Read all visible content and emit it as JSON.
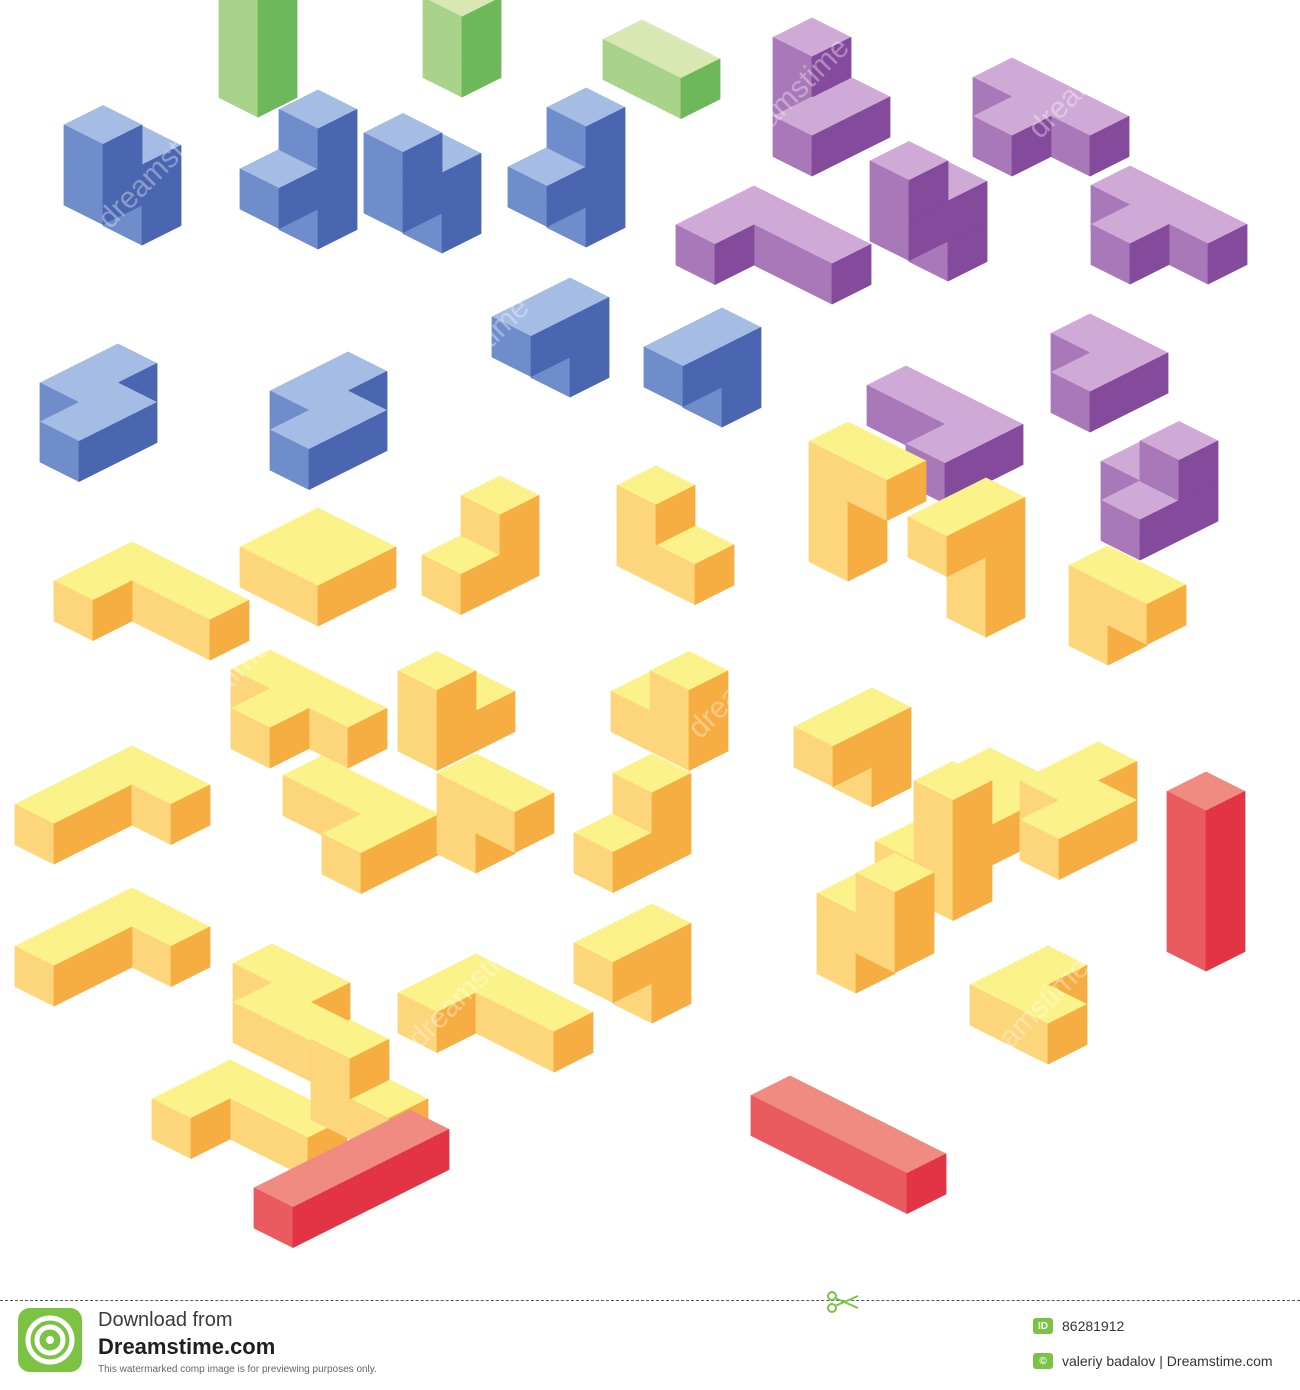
{
  "watermark": {
    "repeated_text": "dreamstime"
  },
  "pieces": {
    "green": [
      {
        "cells": [
          [
            0,
            0,
            0
          ],
          [
            0,
            0,
            1
          ],
          [
            0,
            0,
            2
          ]
        ]
      },
      {
        "cells": [
          [
            0,
            0,
            0
          ],
          [
            0,
            0,
            1
          ]
        ]
      },
      {
        "cells": [
          [
            0,
            0,
            0
          ],
          [
            1,
            0,
            0
          ]
        ]
      }
    ],
    "purple": [
      {
        "cells": [
          [
            0,
            0,
            0
          ],
          [
            1,
            0,
            0
          ],
          [
            1,
            1,
            0
          ],
          [
            0,
            0,
            1
          ]
        ]
      },
      {
        "cells": [
          [
            0,
            0,
            0
          ],
          [
            1,
            0,
            0
          ],
          [
            2,
            0,
            0
          ],
          [
            1,
            1,
            0
          ]
        ]
      },
      {
        "cells": [
          [
            0,
            0,
            0
          ],
          [
            1,
            0,
            0
          ],
          [
            2,
            0,
            0
          ],
          [
            1,
            1,
            0
          ]
        ]
      },
      {
        "cells": [
          [
            0,
            0,
            0
          ],
          [
            1,
            0,
            0
          ],
          [
            2,
            0,
            0
          ],
          [
            0,
            1,
            0
          ]
        ]
      },
      {
        "cells": [
          [
            0,
            0,
            0
          ],
          [
            0,
            0,
            1
          ],
          [
            0,
            1,
            1
          ],
          [
            0,
            1,
            2
          ]
        ]
      },
      {
        "cells": [
          [
            0,
            0,
            0
          ],
          [
            1,
            0,
            0
          ],
          [
            1,
            1,
            0
          ]
        ]
      },
      {
        "cells": [
          [
            0,
            0,
            0
          ],
          [
            1,
            0,
            0
          ],
          [
            2,
            0,
            0
          ],
          [
            2,
            1,
            0
          ]
        ]
      },
      {
        "cells": [
          [
            0,
            0,
            0
          ],
          [
            1,
            0,
            0
          ],
          [
            1,
            1,
            0
          ],
          [
            1,
            0,
            1
          ]
        ]
      }
    ],
    "blue": [
      {
        "cells": [
          [
            0,
            0,
            0
          ],
          [
            0,
            0,
            1
          ],
          [
            0,
            1,
            1
          ],
          [
            0,
            1,
            2
          ]
        ]
      },
      {
        "cells": [
          [
            0,
            0,
            0
          ],
          [
            0,
            0,
            1
          ],
          [
            0,
            0,
            2
          ],
          [
            0,
            1,
            1
          ]
        ]
      },
      {
        "cells": [
          [
            0,
            0,
            0
          ],
          [
            0,
            0,
            1
          ],
          [
            0,
            1,
            1
          ],
          [
            0,
            1,
            2
          ]
        ]
      },
      {
        "cells": [
          [
            0,
            0,
            0
          ],
          [
            0,
            0,
            1
          ],
          [
            0,
            1,
            1
          ],
          [
            0,
            0,
            2
          ]
        ]
      },
      {
        "cells": [
          [
            0,
            0,
            0
          ],
          [
            0,
            1,
            0
          ],
          [
            1,
            1,
            0
          ],
          [
            1,
            2,
            0
          ]
        ]
      },
      {
        "cells": [
          [
            0,
            0,
            0
          ],
          [
            0,
            1,
            0
          ],
          [
            1,
            1,
            0
          ],
          [
            1,
            2,
            0
          ]
        ]
      },
      {
        "cells": [
          [
            0,
            0,
            0
          ],
          [
            0,
            0,
            1
          ],
          [
            0,
            1,
            1
          ]
        ]
      },
      {
        "cells": [
          [
            0,
            0,
            0
          ],
          [
            0,
            0,
            1
          ],
          [
            0,
            1,
            1
          ]
        ]
      }
    ],
    "yellow": [
      {
        "cells": [
          [
            0,
            0,
            0
          ],
          [
            1,
            0,
            0
          ],
          [
            2,
            0,
            0
          ],
          [
            0,
            1,
            0
          ]
        ]
      },
      {
        "cells": [
          [
            0,
            0,
            0
          ],
          [
            1,
            0,
            0
          ],
          [
            1,
            1,
            0
          ],
          [
            0,
            1,
            0
          ]
        ]
      },
      {
        "cells": [
          [
            0,
            0,
            0
          ],
          [
            0,
            1,
            0
          ],
          [
            0,
            0,
            1
          ]
        ]
      },
      {
        "cells": [
          [
            0,
            0,
            0
          ],
          [
            1,
            0,
            0
          ],
          [
            0,
            0,
            1
          ]
        ]
      },
      {
        "cells": [
          [
            0,
            0,
            0
          ],
          [
            0,
            0,
            1
          ],
          [
            0,
            0,
            2
          ],
          [
            1,
            0,
            2
          ]
        ]
      },
      {
        "cells": [
          [
            0,
            0,
            0
          ],
          [
            0,
            0,
            1
          ],
          [
            0,
            0,
            2
          ],
          [
            0,
            1,
            2
          ]
        ]
      },
      {
        "cells": [
          [
            0,
            0,
            0
          ],
          [
            0,
            0,
            1
          ],
          [
            1,
            0,
            1
          ]
        ]
      },
      {
        "cells": [
          [
            0,
            0,
            0
          ],
          [
            1,
            0,
            0
          ],
          [
            2,
            0,
            0
          ],
          [
            1,
            1,
            0
          ]
        ]
      },
      {
        "cells": [
          [
            0,
            0,
            0
          ],
          [
            0,
            1,
            0
          ],
          [
            0,
            1,
            1
          ]
        ]
      },
      {
        "cells": [
          [
            0,
            0,
            0
          ],
          [
            1,
            0,
            0
          ],
          [
            1,
            0,
            1
          ]
        ]
      },
      {
        "cells": [
          [
            0,
            0,
            0
          ],
          [
            0,
            0,
            1
          ],
          [
            0,
            1,
            1
          ]
        ]
      },
      {
        "cells": [
          [
            0,
            0,
            0
          ],
          [
            1,
            0,
            0
          ],
          [
            1,
            1,
            0
          ]
        ]
      },
      {
        "cells": [
          [
            0,
            0,
            0
          ],
          [
            0,
            1,
            0
          ],
          [
            1,
            1,
            0
          ],
          [
            1,
            2,
            0
          ]
        ]
      },
      {
        "cells": [
          [
            0,
            0,
            0
          ],
          [
            0,
            1,
            0
          ],
          [
            0,
            2,
            0
          ],
          [
            1,
            0,
            0
          ]
        ]
      },
      {
        "cells": [
          [
            0,
            0,
            0
          ],
          [
            1,
            0,
            0
          ],
          [
            2,
            0,
            0
          ],
          [
            2,
            1,
            0
          ]
        ]
      },
      {
        "cells": [
          [
            0,
            0,
            0
          ],
          [
            0,
            0,
            1
          ],
          [
            1,
            0,
            1
          ]
        ]
      },
      {
        "cells": [
          [
            0,
            0,
            0
          ],
          [
            0,
            0,
            1
          ],
          [
            0,
            1,
            0
          ]
        ]
      },
      {
        "cells": [
          [
            0,
            0,
            0
          ],
          [
            1,
            0,
            0
          ],
          [
            1,
            0,
            1
          ],
          [
            1,
            0,
            2
          ]
        ]
      },
      {
        "cells": [
          [
            0,
            0,
            0
          ],
          [
            0,
            1,
            0
          ],
          [
            1,
            1,
            0
          ]
        ]
      },
      {
        "cells": [
          [
            0,
            0,
            0
          ],
          [
            1,
            0,
            0
          ],
          [
            0,
            1,
            0
          ],
          [
            0,
            2,
            0
          ]
        ]
      },
      {
        "cells": [
          [
            0,
            0,
            0
          ],
          [
            1,
            0,
            0
          ],
          [
            1,
            1,
            0
          ],
          [
            2,
            1,
            0
          ]
        ]
      },
      {
        "cells": [
          [
            0,
            0,
            0
          ],
          [
            0,
            1,
            0
          ],
          [
            1,
            0,
            0
          ],
          [
            2,
            0,
            0
          ]
        ]
      },
      {
        "cells": [
          [
            0,
            0,
            0
          ],
          [
            0,
            0,
            1
          ],
          [
            0,
            1,
            1
          ]
        ]
      },
      {
        "cells": [
          [
            0,
            0,
            0
          ],
          [
            0,
            0,
            1
          ],
          [
            1,
            0,
            1
          ],
          [
            1,
            0,
            2
          ]
        ]
      },
      {
        "cells": [
          [
            0,
            0,
            0
          ],
          [
            1,
            0,
            0
          ],
          [
            2,
            0,
            0
          ],
          [
            0,
            1,
            0
          ]
        ]
      },
      {
        "cells": [
          [
            0,
            0,
            0
          ],
          [
            0,
            0,
            1
          ],
          [
            1,
            0,
            0
          ]
        ]
      }
    ],
    "red": [
      {
        "cells": [
          [
            0,
            0,
            0
          ],
          [
            0,
            1,
            0
          ],
          [
            0,
            2,
            0
          ],
          [
            0,
            3,
            0
          ]
        ]
      },
      {
        "cells": [
          [
            0,
            0,
            0
          ],
          [
            1,
            0,
            0
          ],
          [
            2,
            0,
            0
          ],
          [
            3,
            0,
            0
          ]
        ]
      },
      {
        "cells": [
          [
            0,
            0,
            0
          ],
          [
            0,
            0,
            1
          ],
          [
            0,
            0,
            2
          ],
          [
            0,
            0,
            3
          ]
        ]
      }
    ]
  },
  "colors": {
    "green": {
      "top": "#d9e7b3",
      "left": "#a9d38a",
      "right": "#6cb85a"
    },
    "blue": {
      "top": "#a5bce4",
      "left": "#6f8dcb",
      "right": "#4a66b0"
    },
    "purple": {
      "top": "#cfaad6",
      "left": "#a878b8",
      "right": "#844a9c"
    },
    "yellow": {
      "top": "#fbf38a",
      "left": "#fdd57b",
      "right": "#f6ad42"
    },
    "red": {
      "top": "#f08b82",
      "left": "#e95b5e",
      "right": "#e33445"
    }
  },
  "footer": {
    "download_label": "Download from",
    "brand_name": "Dreamstime.com",
    "disclaimer": "This watermarked comp image is for previewing purposes only.",
    "id_label": "ID",
    "image_id": "86281912",
    "author_credit": "valeriy badalov | Dreamstime.com",
    "brand_color": "#7cc243"
  }
}
